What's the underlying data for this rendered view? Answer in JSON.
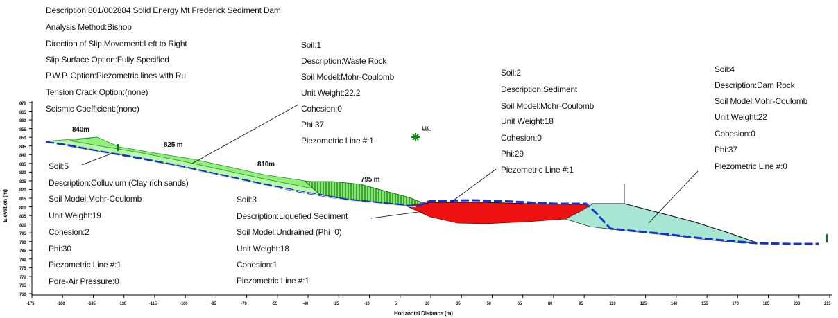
{
  "header": [
    "Description:801/002884 Solid Energy Mt Frederick Sediment Dam",
    "Analysis Method:Bishop",
    "Direction of Slip Movement:Left to Right",
    "Slip Surface Option:Fully Specified",
    "P.W.P. Option:Piezometric lines with Ru",
    "Tension Crack Option:(none)",
    "Seismic Coefficient:(none)"
  ],
  "soils": {
    "soil1": [
      "Soil:1",
      "Description:Waste Rock",
      "Soil Model:Mohr-Coulomb",
      "Unit Weight:22.2",
      "Cohesion:0",
      "Phi:37",
      "Piezometric Line #:1"
    ],
    "soil2": [
      "Soil:2",
      "Description:Sediment",
      "Soil Model:Mohr-Coulomb",
      "Unit Weight:18",
      "Cohesion:0",
      "Phi:29",
      "Piezometric Line #:1"
    ],
    "soil3": [
      "Soil:3",
      "Description:Liquefied Sediment",
      "Soil Model:Undrained (Phi=0)",
      "Unit Weight:18",
      "Cohesion:1",
      "Piezometric Line #:1"
    ],
    "soil4": [
      "Soil:4",
      "Description:Dam Rock",
      "Soil Model:Mohr-Coulomb",
      "Unit Weight:22",
      "Cohesion:0",
      "Phi:37",
      "Piezometric Line #:0"
    ],
    "soil5": [
      "Soil:5",
      "Description:Colluvium (Clay rich sands)",
      "Soil Model:Mohr-Coulomb",
      "Unit Weight:19",
      "Cohesion:2",
      "Phi:30",
      "Piezometric Line #:1",
      "Pore-Air Pressure:0"
    ]
  },
  "elevations": [
    "840m",
    "825 m",
    "810m",
    "795 m"
  ],
  "safety_factor": "1.00",
  "axes": {
    "xlabel": "Horizontal Distance (m)",
    "ylabel": "Elevation (m)",
    "x_ticks": [
      "-175",
      "-160",
      "-145",
      "-130",
      "-115",
      "-100",
      "-85",
      "-70",
      "-55",
      "-40",
      "-25",
      "-10",
      "5",
      "20",
      "35",
      "50",
      "65",
      "80",
      "95",
      "110",
      "125",
      "140",
      "155",
      "170",
      "185",
      "200",
      "215"
    ],
    "y_ticks": [
      "870",
      "865",
      "860",
      "855",
      "850",
      "845",
      "840",
      "835",
      "830",
      "825",
      "820",
      "815",
      "810",
      "805",
      "800",
      "795",
      "790",
      "785",
      "780",
      "775",
      "770",
      "765",
      "760"
    ]
  },
  "colors": {
    "colluvium": "#b7f5a8",
    "waste_rock": "#8ff07a",
    "liquefied": "#ee1111",
    "dam_rock": "#a6e6d2",
    "piezometric": "#1133cc"
  }
}
